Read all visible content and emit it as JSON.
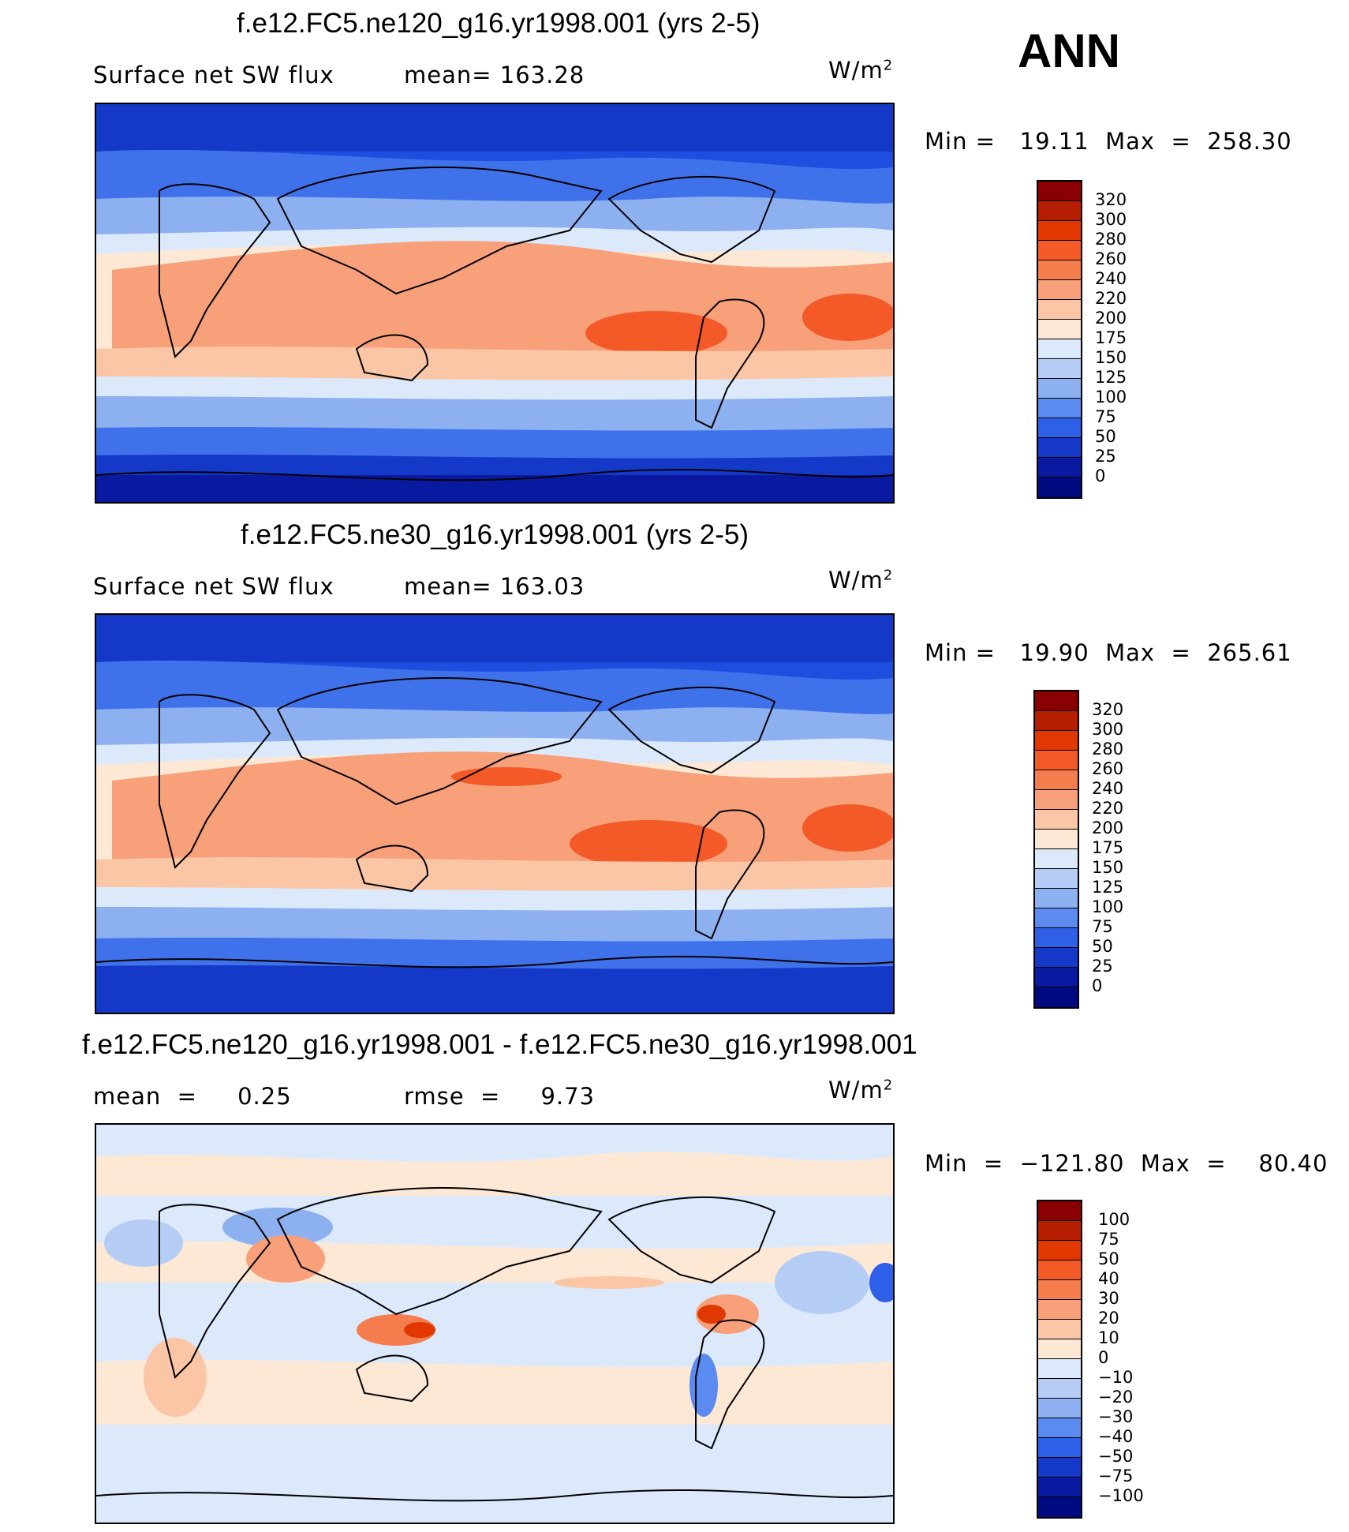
{
  "season": "ANN",
  "panels": [
    {
      "title": "f.e12.FC5.ne120_g16.yr1998.001 (yrs 2-5)",
      "left_label": "Surface net SW flux",
      "mid_label": "mean=  163.28",
      "units_base": "W/m",
      "units_exp": "2",
      "stats": "Min =   19.11  Max  =  258.30",
      "colorbar": {
        "labels": [
          "320",
          "300",
          "280",
          "260",
          "240",
          "220",
          "200",
          "175",
          "150",
          "125",
          "100",
          "75",
          "50",
          "25",
          "0"
        ],
        "colors": [
          "#8a0000",
          "#b51e00",
          "#e03800",
          "#f45a28",
          "#f57c4c",
          "#f7a07a",
          "#fbc6a6",
          "#fde8d6",
          "#dce9fb",
          "#b5cdf5",
          "#8cb0f0",
          "#5b8af0",
          "#2e5fe8",
          "#1438c8",
          "#0a1aa0",
          "#000a80"
        ]
      }
    },
    {
      "title": "f.e12.FC5.ne30_g16.yr1998.001 (yrs 2-5)",
      "left_label": "Surface net SW flux",
      "mid_label": "mean=  163.03",
      "units_base": "W/m",
      "units_exp": "2",
      "stats": "Min =   19.90  Max  =  265.61",
      "colorbar": {
        "labels": [
          "320",
          "300",
          "280",
          "260",
          "240",
          "220",
          "200",
          "175",
          "150",
          "125",
          "100",
          "75",
          "50",
          "25",
          "0"
        ],
        "colors": [
          "#8a0000",
          "#b51e00",
          "#e03800",
          "#f45a28",
          "#f57c4c",
          "#f7a07a",
          "#fbc6a6",
          "#fde8d6",
          "#dce9fb",
          "#b5cdf5",
          "#8cb0f0",
          "#5b8af0",
          "#2e5fe8",
          "#1438c8",
          "#0a1aa0",
          "#000a80"
        ]
      }
    },
    {
      "title": "f.e12.FC5.ne120_g16.yr1998.001 - f.e12.FC5.ne30_g16.yr1998.001",
      "left_label": "mean  =     0.25",
      "mid_label": "rmse  =     9.73",
      "units_base": "W/m",
      "units_exp": "2",
      "stats": "Min  =  −121.80  Max  =    80.40",
      "colorbar": {
        "labels": [
          "100",
          "75",
          "50",
          "40",
          "30",
          "20",
          "10",
          "0",
          "−10",
          "−20",
          "−30",
          "−40",
          "−50",
          "−75",
          "−100"
        ],
        "colors": [
          "#8a0000",
          "#b51e00",
          "#e03800",
          "#f45a28",
          "#f57c4c",
          "#f7a07a",
          "#fbc6a6",
          "#fde8d6",
          "#dce9fb",
          "#b5cdf5",
          "#8cb0f0",
          "#5b8af0",
          "#2e5fe8",
          "#1438c8",
          "#0a1aa0",
          "#000a80"
        ]
      }
    }
  ]
}
